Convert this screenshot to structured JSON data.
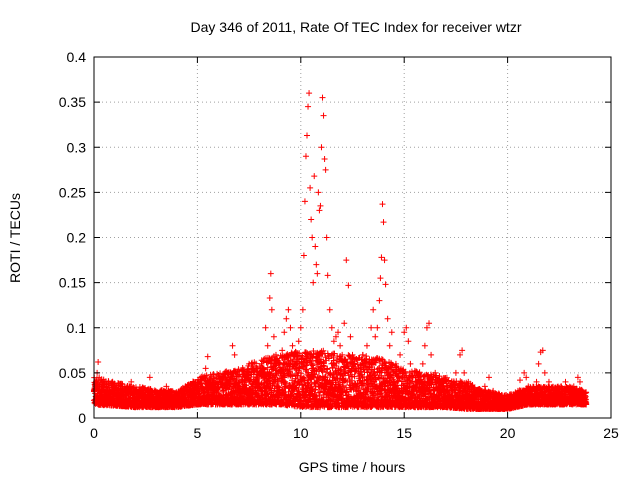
{
  "chart_data": {
    "type": "scatter",
    "title": "Day 346 of 2011, Rate Of TEC Index for receiver wtzr",
    "xlabel": "GPS time / hours",
    "ylabel": "ROTI / TECUs",
    "xlim": [
      0,
      25
    ],
    "ylim": [
      0,
      0.4
    ],
    "xticks": [
      0,
      5,
      10,
      15,
      20,
      25
    ],
    "yticks": [
      0,
      0.05,
      0.1,
      0.15,
      0.2,
      0.25,
      0.3,
      0.35,
      0.4
    ],
    "xtick_labels": [
      "0",
      "5",
      "10",
      "15",
      "20",
      "25"
    ],
    "ytick_labels": [
      "0",
      "0.05",
      "0.1",
      "0.15",
      "0.2",
      "0.25",
      "0.3",
      "0.35",
      "0.4"
    ],
    "grid": true,
    "legend": "none",
    "marker": "+",
    "color": "#ff0000",
    "x_range_of_points": [
      0,
      23.8
    ],
    "series": [
      {
        "points": [
          [
            0.05,
            0.02
          ],
          [
            0.1,
            0.035
          ],
          [
            0.15,
            0.05
          ],
          [
            0.2,
            0.062
          ],
          [
            0.25,
            0.045
          ],
          [
            0.3,
            0.03
          ],
          [
            0.4,
            0.02
          ],
          [
            0.5,
            0.015
          ],
          [
            0.6,
            0.02
          ],
          [
            0.7,
            0.025
          ],
          [
            0.8,
            0.018
          ],
          [
            0.9,
            0.03
          ],
          [
            1.0,
            0.038
          ],
          [
            1.1,
            0.025
          ],
          [
            1.2,
            0.02
          ],
          [
            1.4,
            0.03
          ],
          [
            1.6,
            0.028
          ],
          [
            1.7,
            0.035
          ],
          [
            1.8,
            0.04
          ],
          [
            1.9,
            0.026
          ],
          [
            2.0,
            0.022
          ],
          [
            2.2,
            0.018
          ],
          [
            2.4,
            0.025
          ],
          [
            2.6,
            0.03
          ],
          [
            2.7,
            0.045
          ],
          [
            2.8,
            0.03
          ],
          [
            3.0,
            0.02
          ],
          [
            3.2,
            0.018
          ],
          [
            3.4,
            0.028
          ],
          [
            3.5,
            0.035
          ],
          [
            3.7,
            0.025
          ],
          [
            3.9,
            0.02
          ],
          [
            4.1,
            0.022
          ],
          [
            4.3,
            0.03
          ],
          [
            4.5,
            0.028
          ],
          [
            4.7,
            0.018
          ],
          [
            4.9,
            0.022
          ],
          [
            5.1,
            0.03
          ],
          [
            5.3,
            0.045
          ],
          [
            5.4,
            0.055
          ],
          [
            5.5,
            0.068
          ],
          [
            5.6,
            0.04
          ],
          [
            5.8,
            0.03
          ],
          [
            6.0,
            0.025
          ],
          [
            6.2,
            0.035
          ],
          [
            6.4,
            0.04
          ],
          [
            6.6,
            0.05
          ],
          [
            6.7,
            0.08
          ],
          [
            6.8,
            0.07
          ],
          [
            6.9,
            0.04
          ],
          [
            7.0,
            0.03
          ],
          [
            7.2,
            0.035
          ],
          [
            7.4,
            0.045
          ],
          [
            7.5,
            0.06
          ],
          [
            7.6,
            0.055
          ],
          [
            7.8,
            0.04
          ],
          [
            8.0,
            0.05
          ],
          [
            8.1,
            0.06
          ],
          [
            8.2,
            0.045
          ],
          [
            8.3,
            0.1
          ],
          [
            8.4,
            0.08
          ],
          [
            8.5,
            0.133
          ],
          [
            8.55,
            0.16
          ],
          [
            8.6,
            0.12
          ],
          [
            8.7,
            0.09
          ],
          [
            8.8,
            0.07
          ],
          [
            8.9,
            0.05
          ],
          [
            9.0,
            0.06
          ],
          [
            9.1,
            0.075
          ],
          [
            9.2,
            0.095
          ],
          [
            9.3,
            0.11
          ],
          [
            9.4,
            0.12
          ],
          [
            9.5,
            0.1
          ],
          [
            9.6,
            0.08
          ],
          [
            9.7,
            0.06
          ],
          [
            9.8,
            0.07
          ],
          [
            9.9,
            0.085
          ],
          [
            10.0,
            0.1
          ],
          [
            10.1,
            0.12
          ],
          [
            10.15,
            0.18
          ],
          [
            10.2,
            0.24
          ],
          [
            10.25,
            0.29
          ],
          [
            10.3,
            0.313
          ],
          [
            10.35,
            0.345
          ],
          [
            10.4,
            0.36
          ],
          [
            10.45,
            0.255
          ],
          [
            10.5,
            0.22
          ],
          [
            10.55,
            0.2
          ],
          [
            10.6,
            0.15
          ],
          [
            10.65,
            0.268
          ],
          [
            10.7,
            0.19
          ],
          [
            10.75,
            0.17
          ],
          [
            10.8,
            0.16
          ],
          [
            10.85,
            0.25
          ],
          [
            10.9,
            0.23
          ],
          [
            10.95,
            0.235
          ],
          [
            11.0,
            0.3
          ],
          [
            11.05,
            0.355
          ],
          [
            11.1,
            0.335
          ],
          [
            11.15,
            0.287
          ],
          [
            11.2,
            0.275
          ],
          [
            11.25,
            0.2
          ],
          [
            11.3,
            0.158
          ],
          [
            11.4,
            0.12
          ],
          [
            11.5,
            0.1
          ],
          [
            11.6,
            0.085
          ],
          [
            11.7,
            0.09
          ],
          [
            11.8,
            0.095
          ],
          [
            11.9,
            0.08
          ],
          [
            12.0,
            0.07
          ],
          [
            12.1,
            0.105
          ],
          [
            12.2,
            0.175
          ],
          [
            12.3,
            0.147
          ],
          [
            12.4,
            0.09
          ],
          [
            12.5,
            0.07
          ],
          [
            12.6,
            0.06
          ],
          [
            12.8,
            0.05
          ],
          [
            13.0,
            0.07
          ],
          [
            13.2,
            0.08
          ],
          [
            13.4,
            0.1
          ],
          [
            13.5,
            0.12
          ],
          [
            13.6,
            0.09
          ],
          [
            13.7,
            0.1
          ],
          [
            13.8,
            0.13
          ],
          [
            13.85,
            0.155
          ],
          [
            13.9,
            0.178
          ],
          [
            13.95,
            0.237
          ],
          [
            14.0,
            0.217
          ],
          [
            14.05,
            0.175
          ],
          [
            14.1,
            0.148
          ],
          [
            14.2,
            0.11
          ],
          [
            14.3,
            0.08
          ],
          [
            14.4,
            0.095
          ],
          [
            14.6,
            0.06
          ],
          [
            14.8,
            0.07
          ],
          [
            15.0,
            0.095
          ],
          [
            15.1,
            0.1
          ],
          [
            15.2,
            0.085
          ],
          [
            15.3,
            0.06
          ],
          [
            15.5,
            0.05
          ],
          [
            15.7,
            0.045
          ],
          [
            15.9,
            0.06
          ],
          [
            16.0,
            0.08
          ],
          [
            16.1,
            0.1
          ],
          [
            16.2,
            0.105
          ],
          [
            16.3,
            0.07
          ],
          [
            16.5,
            0.05
          ],
          [
            16.7,
            0.04
          ],
          [
            16.9,
            0.035
          ],
          [
            17.1,
            0.03
          ],
          [
            17.3,
            0.04
          ],
          [
            17.5,
            0.05
          ],
          [
            17.7,
            0.07
          ],
          [
            17.8,
            0.075
          ],
          [
            17.9,
            0.05
          ],
          [
            18.1,
            0.04
          ],
          [
            18.3,
            0.035
          ],
          [
            18.5,
            0.03
          ],
          [
            18.7,
            0.025
          ],
          [
            18.9,
            0.035
          ],
          [
            19.1,
            0.045
          ],
          [
            19.3,
            0.03
          ],
          [
            19.5,
            0.02
          ],
          [
            19.7,
            0.015
          ],
          [
            19.9,
            0.012
          ],
          [
            20.1,
            0.02
          ],
          [
            20.3,
            0.025
          ],
          [
            20.5,
            0.03
          ],
          [
            20.6,
            0.042
          ],
          [
            20.8,
            0.05
          ],
          [
            20.9,
            0.045
          ],
          [
            21.0,
            0.035
          ],
          [
            21.2,
            0.03
          ],
          [
            21.4,
            0.04
          ],
          [
            21.5,
            0.06
          ],
          [
            21.6,
            0.073
          ],
          [
            21.7,
            0.075
          ],
          [
            21.8,
            0.05
          ],
          [
            22.0,
            0.04
          ],
          [
            22.2,
            0.03
          ],
          [
            22.4,
            0.025
          ],
          [
            22.6,
            0.035
          ],
          [
            22.8,
            0.04
          ],
          [
            23.0,
            0.03
          ],
          [
            23.2,
            0.035
          ],
          [
            23.4,
            0.045
          ],
          [
            23.5,
            0.04
          ],
          [
            23.6,
            0.03
          ],
          [
            23.7,
            0.02
          ],
          [
            23.8,
            0.015
          ]
        ]
      }
    ],
    "background_band": [
      [
        0,
        0.015,
        0.045
      ],
      [
        2,
        0.012,
        0.035
      ],
      [
        4,
        0.012,
        0.03
      ],
      [
        5,
        0.015,
        0.045
      ],
      [
        6,
        0.015,
        0.05
      ],
      [
        7,
        0.015,
        0.055
      ],
      [
        8,
        0.015,
        0.065
      ],
      [
        9,
        0.015,
        0.07
      ],
      [
        10,
        0.012,
        0.075
      ],
      [
        11,
        0.012,
        0.075
      ],
      [
        12,
        0.012,
        0.07
      ],
      [
        13,
        0.012,
        0.07
      ],
      [
        14,
        0.012,
        0.065
      ],
      [
        15,
        0.012,
        0.055
      ],
      [
        16,
        0.012,
        0.05
      ],
      [
        17,
        0.012,
        0.045
      ],
      [
        18,
        0.01,
        0.04
      ],
      [
        19,
        0.01,
        0.03
      ],
      [
        20,
        0.01,
        0.025
      ],
      [
        21,
        0.015,
        0.035
      ],
      [
        22,
        0.015,
        0.035
      ],
      [
        23,
        0.015,
        0.035
      ],
      [
        23.8,
        0.015,
        0.03
      ]
    ]
  }
}
